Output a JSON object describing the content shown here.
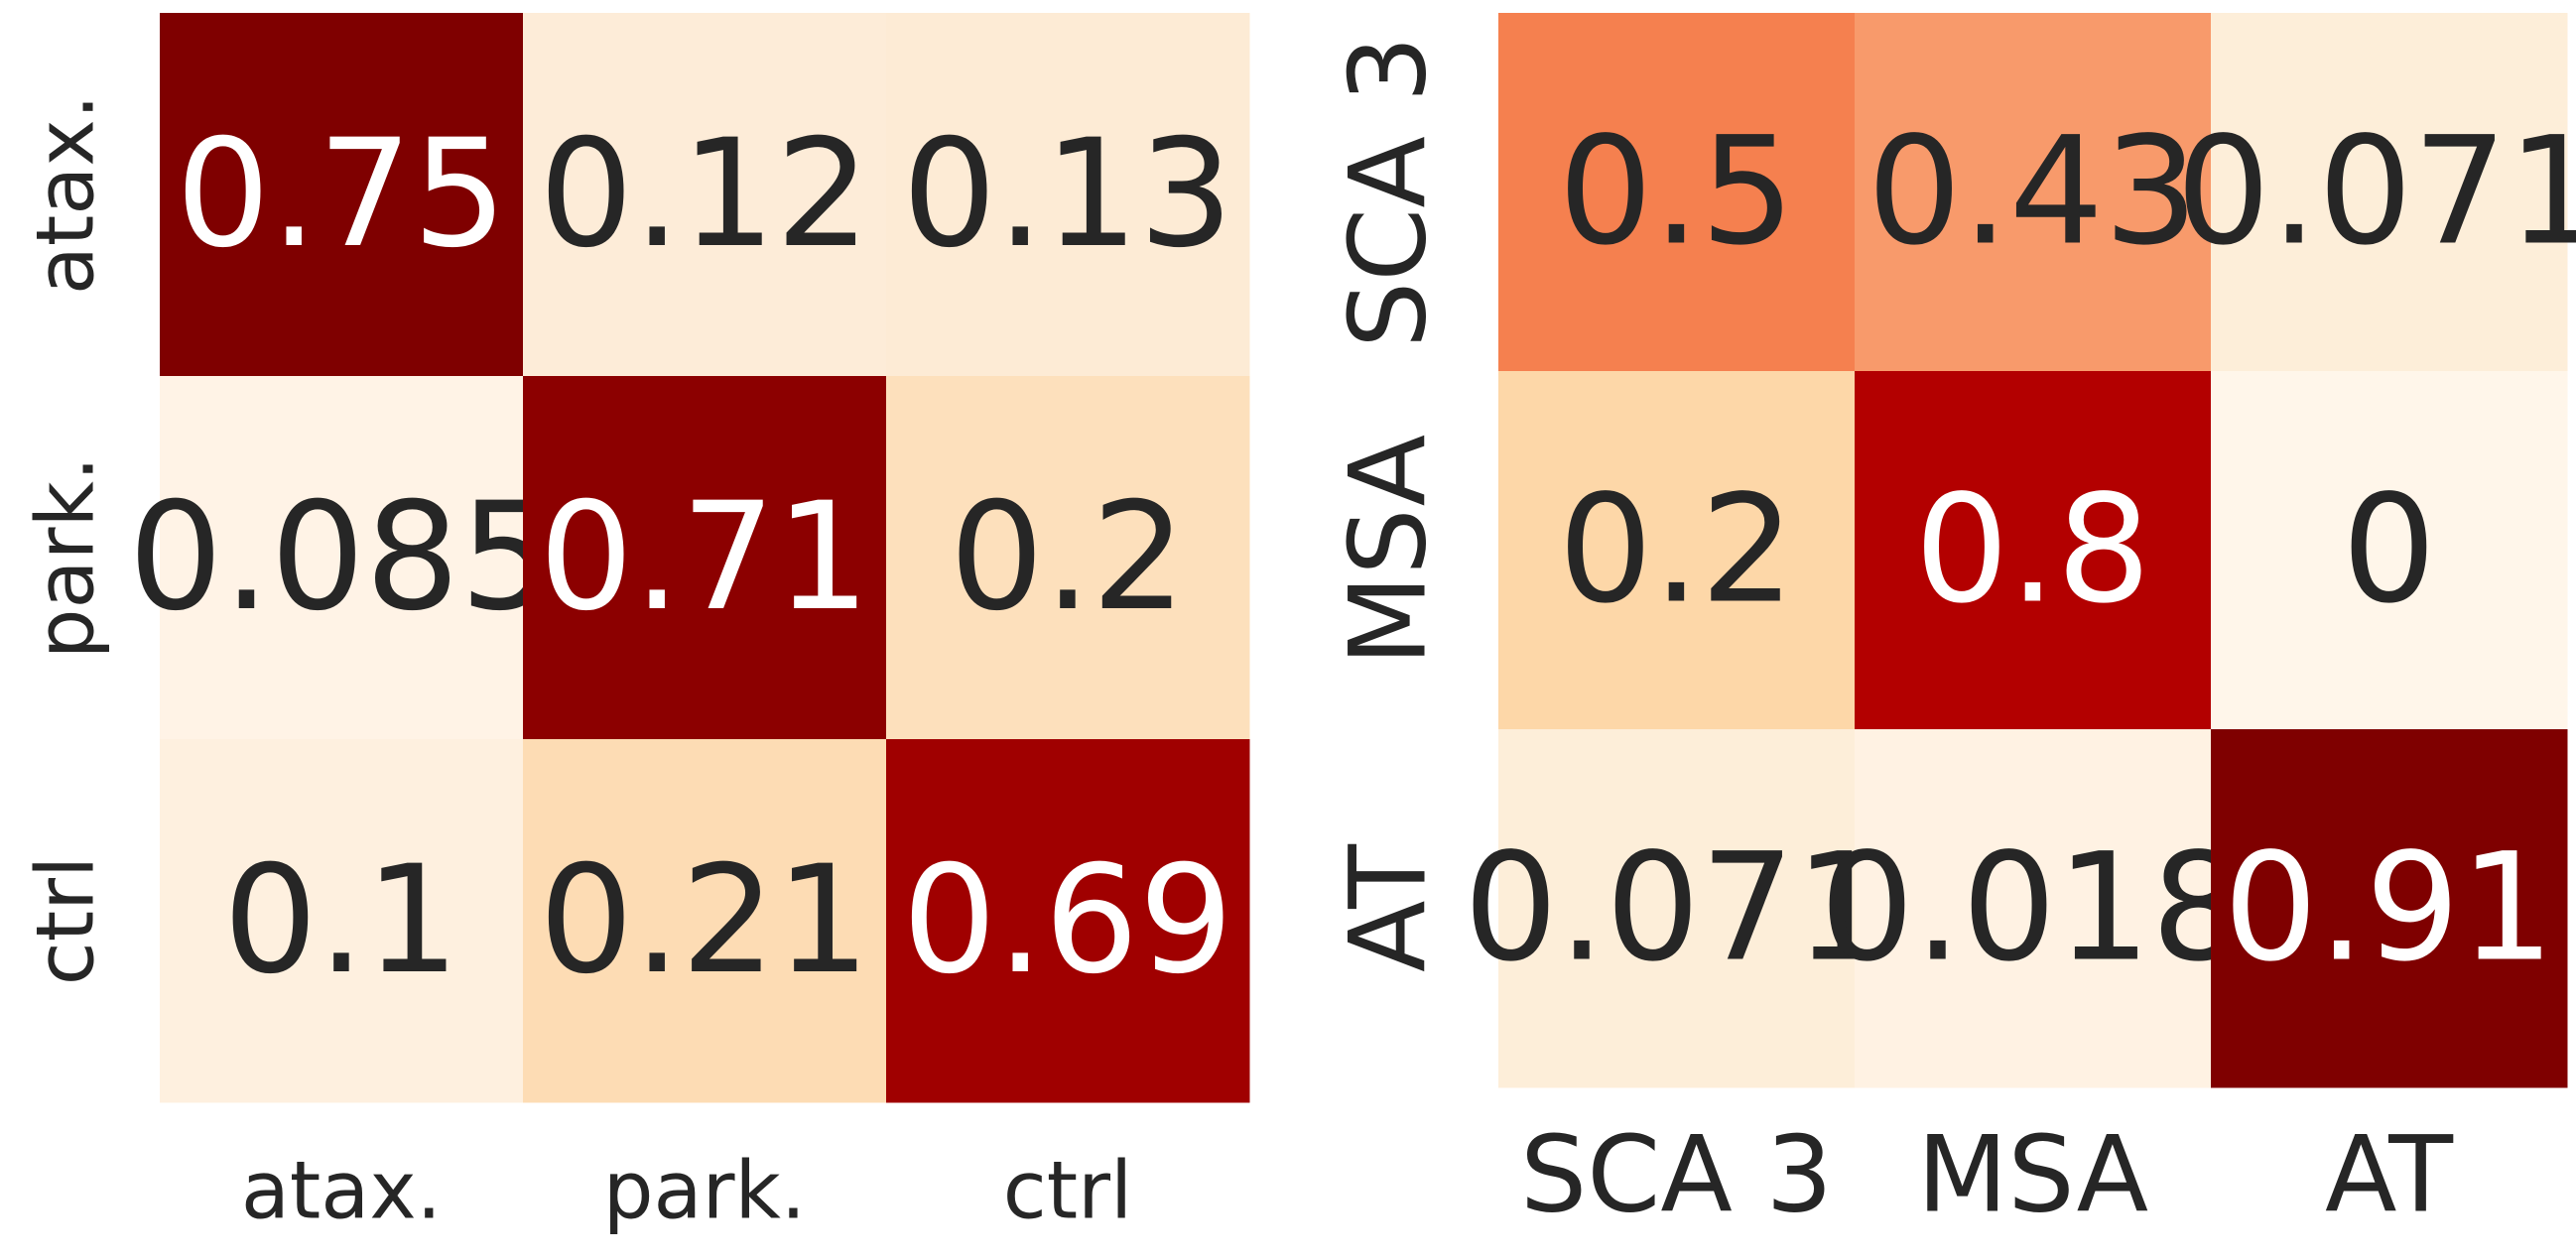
{
  "chart_data": [
    {
      "type": "heatmap",
      "x_categories": [
        "atax.",
        "park.",
        "ctrl"
      ],
      "y_categories": [
        "atax.",
        "park.",
        "ctrl"
      ],
      "values": [
        [
          0.75,
          0.12,
          0.13
        ],
        [
          0.085,
          0.71,
          0.2
        ],
        [
          0.1,
          0.21,
          0.69
        ]
      ],
      "colors": [
        [
          "#7f0000",
          "#fdecd8",
          "#fdebd5"
        ],
        [
          "#fff3e6",
          "#8c0000",
          "#fde0bc"
        ],
        [
          "#fef0df",
          "#fddcb4",
          "#a00000"
        ]
      ]
    },
    {
      "type": "heatmap",
      "x_categories": [
        "SCA 3",
        "MSA",
        "AT"
      ],
      "y_categories": [
        "SCA 3",
        "MSA",
        "AT"
      ],
      "values": [
        [
          0.5,
          0.43,
          0.071
        ],
        [
          0.2,
          0.8,
          0
        ],
        [
          0.071,
          0.018,
          0.91
        ]
      ],
      "colors": [
        [
          "#f5804f",
          "#f89a6b",
          "#fdeed9"
        ],
        [
          "#fdd7a8",
          "#b30000",
          "#fff6ea"
        ],
        [
          "#fdeed9",
          "#fff2e3",
          "#7f0000"
        ]
      ]
    }
  ]
}
